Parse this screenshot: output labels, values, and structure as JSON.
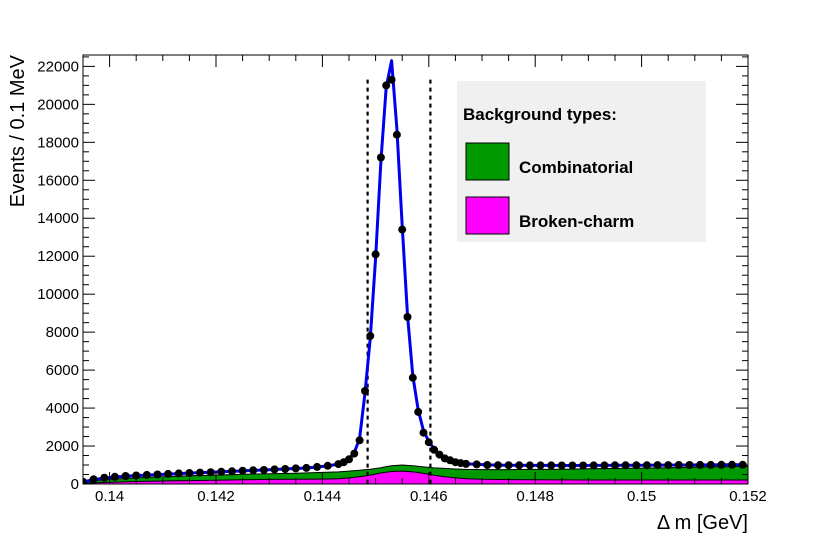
{
  "chart_data": {
    "type": "line",
    "xlabel": "Δ m [GeV]",
    "ylabel": "Events / 0.1 MeV",
    "xlim": [
      0.1395,
      0.152
    ],
    "ylim": [
      0,
      22600
    ],
    "x_ticks": [
      0.14,
      0.142,
      0.144,
      0.146,
      0.148,
      0.15,
      0.152
    ],
    "x_tick_labels": [
      "0.14",
      "0.142",
      "0.144",
      "0.146",
      "0.148",
      "0.15",
      "0.152"
    ],
    "y_ticks": [
      0,
      2000,
      4000,
      6000,
      8000,
      10000,
      12000,
      14000,
      16000,
      18000,
      20000,
      22000
    ],
    "y_tick_labels": [
      "0",
      "2000",
      "4000",
      "6000",
      "8000",
      "10000",
      "12000",
      "14000",
      "16000",
      "18000",
      "20000",
      "22000"
    ],
    "signal_window": [
      0.14485,
      0.14603
    ],
    "legend": {
      "title": "Background types:",
      "placement": "top-right",
      "entries": [
        {
          "label": "Combinatorial",
          "color": "#009900"
        },
        {
          "label": "Broken-charm",
          "color": "#ff00ff"
        }
      ]
    },
    "colors": {
      "fit": "#0000ee",
      "data": "#000000",
      "combinatorial": "#009900",
      "broken_charm": "#ff00ff",
      "legend_bg": "#f0f0f0"
    },
    "series": [
      {
        "kind": "data-points",
        "x": [
          0.1395,
          0.1397,
          0.1399,
          0.1401,
          0.1403,
          0.1405,
          0.1407,
          0.1409,
          0.1411,
          0.1413,
          0.1415,
          0.1417,
          0.1419,
          0.1421,
          0.1423,
          0.1425,
          0.1427,
          0.1429,
          0.1431,
          0.1433,
          0.1435,
          0.1437,
          0.1439,
          0.1441,
          0.1443,
          0.1444,
          0.1445,
          0.1446,
          0.1447,
          0.1448,
          0.1449,
          0.145,
          0.1451,
          0.1452,
          0.1453,
          0.1454,
          0.1455,
          0.1456,
          0.1457,
          0.1458,
          0.1459,
          0.146,
          0.1461,
          0.1462,
          0.1463,
          0.1464,
          0.1465,
          0.1466,
          0.1467,
          0.1469,
          0.1471,
          0.1473,
          0.1475,
          0.1477,
          0.1479,
          0.1481,
          0.1483,
          0.1485,
          0.1487,
          0.1489,
          0.1491,
          0.1493,
          0.1495,
          0.1497,
          0.1499,
          0.1501,
          0.1503,
          0.1505,
          0.1507,
          0.1509,
          0.1511,
          0.1513,
          0.1515,
          0.1517,
          0.1519
        ],
        "y": [
          120,
          250,
          330,
          380,
          420,
          450,
          480,
          500,
          530,
          560,
          580,
          600,
          620,
          650,
          670,
          700,
          720,
          740,
          770,
          790,
          820,
          850,
          900,
          960,
          1050,
          1150,
          1300,
          1600,
          2300,
          4900,
          7800,
          12100,
          17200,
          21000,
          21300,
          18400,
          13400,
          8800,
          5600,
          3800,
          2700,
          2200,
          1800,
          1550,
          1350,
          1250,
          1150,
          1100,
          1060,
          1030,
          1000,
          990,
          990,
          985,
          980,
          980,
          980,
          975,
          975,
          975,
          980,
          980,
          985,
          985,
          990,
          990,
          995,
          995,
          1000,
          1000,
          1005,
          1005,
          1010,
          1010,
          1010
        ]
      },
      {
        "kind": "fit",
        "x": [
          0.1395,
          0.1397,
          0.1399,
          0.1401,
          0.1403,
          0.1405,
          0.1407,
          0.1409,
          0.1411,
          0.1413,
          0.1415,
          0.1417,
          0.1419,
          0.1421,
          0.1423,
          0.1425,
          0.1427,
          0.1429,
          0.1431,
          0.1433,
          0.1435,
          0.1437,
          0.1439,
          0.1441,
          0.1443,
          0.1444,
          0.1445,
          0.1446,
          0.1447,
          0.1448,
          0.1449,
          0.145,
          0.1451,
          0.1452,
          0.1453,
          0.1454,
          0.1455,
          0.1456,
          0.1457,
          0.1458,
          0.1459,
          0.146,
          0.1461,
          0.1462,
          0.1463,
          0.1464,
          0.1465,
          0.1466,
          0.1467,
          0.1469,
          0.1471,
          0.1473,
          0.1475,
          0.1477,
          0.1479,
          0.1481,
          0.1483,
          0.1485,
          0.1487,
          0.1489,
          0.1491,
          0.1493,
          0.1495,
          0.1497,
          0.1499,
          0.1501,
          0.1503,
          0.1505,
          0.1507,
          0.1509,
          0.1511,
          0.1513,
          0.1515,
          0.1517,
          0.1519
        ],
        "y": [
          100,
          230,
          310,
          370,
          410,
          440,
          470,
          495,
          520,
          550,
          575,
          600,
          620,
          645,
          665,
          690,
          715,
          740,
          765,
          790,
          815,
          845,
          895,
          955,
          1050,
          1150,
          1330,
          1650,
          2400,
          4800,
          7700,
          11900,
          17000,
          20900,
          22300,
          18700,
          13600,
          8900,
          5700,
          3900,
          2800,
          2250,
          1850,
          1550,
          1350,
          1240,
          1160,
          1110,
          1070,
          1030,
          1005,
          995,
          990,
          985,
          980,
          980,
          980,
          975,
          975,
          975,
          980,
          980,
          985,
          985,
          990,
          990,
          995,
          995,
          1000,
          1000,
          1005,
          1005,
          1010,
          1010,
          1010
        ]
      },
      {
        "kind": "stacked-area",
        "name": "Combinatorial",
        "x": [
          0.1395,
          0.14,
          0.1405,
          0.141,
          0.1415,
          0.142,
          0.1425,
          0.143,
          0.1435,
          0.144,
          0.1443,
          0.1445,
          0.1447,
          0.1449,
          0.1451,
          0.1453,
          0.1455,
          0.1457,
          0.1459,
          0.1461,
          0.1463,
          0.1465,
          0.1467,
          0.147,
          0.1475,
          0.148,
          0.1485,
          0.149,
          0.1495,
          0.15,
          0.1505,
          0.151,
          0.1515,
          0.152
        ],
        "y": [
          120,
          250,
          320,
          380,
          430,
          470,
          510,
          540,
          570,
          610,
          640,
          680,
          720,
          780,
          860,
          960,
          1000,
          960,
          900,
          850,
          820,
          790,
          770,
          760,
          760,
          770,
          780,
          800,
          820,
          840,
          860,
          890,
          910,
          930
        ]
      },
      {
        "kind": "stacked-area",
        "name": "Broken-charm",
        "x": [
          0.1395,
          0.14,
          0.1405,
          0.141,
          0.1415,
          0.142,
          0.1425,
          0.143,
          0.1435,
          0.144,
          0.1443,
          0.1445,
          0.1447,
          0.1449,
          0.1451,
          0.1453,
          0.1455,
          0.1457,
          0.1459,
          0.1461,
          0.1463,
          0.1465,
          0.1467,
          0.147,
          0.1475,
          0.148,
          0.1485,
          0.149,
          0.1495,
          0.15,
          0.1505,
          0.151,
          0.1515,
          0.152
        ],
        "y": [
          40,
          90,
          130,
          160,
          180,
          200,
          220,
          240,
          250,
          260,
          280,
          320,
          380,
          470,
          580,
          660,
          680,
          640,
          560,
          460,
          380,
          320,
          280,
          250,
          230,
          220,
          215,
          210,
          210,
          210,
          210,
          210,
          210,
          210
        ]
      }
    ]
  }
}
